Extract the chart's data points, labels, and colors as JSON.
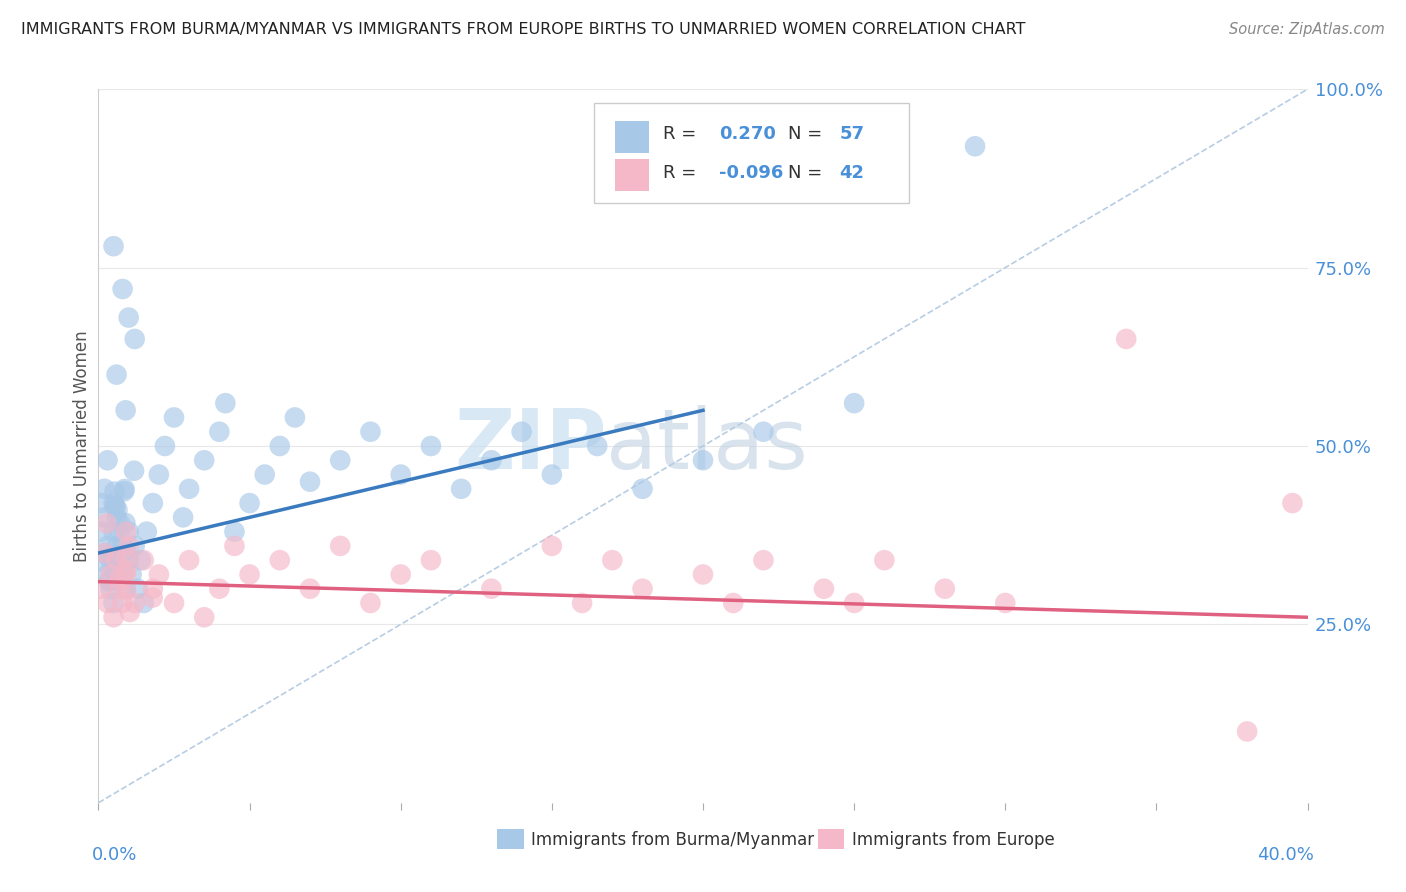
{
  "title": "IMMIGRANTS FROM BURMA/MYANMAR VS IMMIGRANTS FROM EUROPE BIRTHS TO UNMARRIED WOMEN CORRELATION CHART",
  "source": "Source: ZipAtlas.com",
  "ylabel": "Births to Unmarried Women",
  "legend1_r": "0.270",
  "legend1_n": "57",
  "legend2_r": "-0.096",
  "legend2_n": "42",
  "blue_color": "#a8c8e8",
  "pink_color": "#f5b8c8",
  "blue_line_color": "#3a7abf",
  "pink_line_color": "#e06080",
  "dash_color": "#b0c8e0",
  "xlim": [
    0.0,
    0.4
  ],
  "ylim": [
    0.0,
    1.0
  ],
  "blue_x": [
    0.001,
    0.001,
    0.002,
    0.002,
    0.002,
    0.003,
    0.003,
    0.003,
    0.004,
    0.004,
    0.005,
    0.005,
    0.005,
    0.006,
    0.006,
    0.007,
    0.007,
    0.008,
    0.008,
    0.009,
    0.01,
    0.01,
    0.011,
    0.012,
    0.013,
    0.014,
    0.015,
    0.016,
    0.018,
    0.02,
    0.022,
    0.025,
    0.028,
    0.03,
    0.035,
    0.04,
    0.042,
    0.045,
    0.05,
    0.055,
    0.06,
    0.065,
    0.07,
    0.08,
    0.09,
    0.1,
    0.11,
    0.12,
    0.13,
    0.14,
    0.15,
    0.165,
    0.18,
    0.2,
    0.22,
    0.25,
    0.29
  ],
  "blue_y": [
    0.38,
    0.42,
    0.35,
    0.4,
    0.44,
    0.32,
    0.36,
    0.48,
    0.3,
    0.34,
    0.28,
    0.38,
    0.42,
    0.36,
    0.4,
    0.34,
    0.38,
    0.32,
    0.36,
    0.3,
    0.34,
    0.38,
    0.32,
    0.36,
    0.3,
    0.34,
    0.28,
    0.38,
    0.42,
    0.46,
    0.5,
    0.54,
    0.4,
    0.44,
    0.48,
    0.52,
    0.56,
    0.38,
    0.42,
    0.46,
    0.5,
    0.54,
    0.45,
    0.48,
    0.52,
    0.46,
    0.5,
    0.44,
    0.48,
    0.52,
    0.46,
    0.5,
    0.44,
    0.48,
    0.52,
    0.56,
    0.92
  ],
  "pink_x": [
    0.001,
    0.002,
    0.003,
    0.004,
    0.005,
    0.006,
    0.007,
    0.008,
    0.009,
    0.01,
    0.012,
    0.015,
    0.018,
    0.02,
    0.025,
    0.03,
    0.035,
    0.04,
    0.045,
    0.05,
    0.06,
    0.07,
    0.08,
    0.09,
    0.1,
    0.11,
    0.13,
    0.15,
    0.16,
    0.17,
    0.18,
    0.2,
    0.21,
    0.22,
    0.24,
    0.25,
    0.26,
    0.28,
    0.3,
    0.34,
    0.38,
    0.395
  ],
  "pink_y": [
    0.3,
    0.35,
    0.28,
    0.32,
    0.26,
    0.34,
    0.3,
    0.28,
    0.32,
    0.36,
    0.28,
    0.34,
    0.3,
    0.32,
    0.28,
    0.34,
    0.26,
    0.3,
    0.36,
    0.32,
    0.34,
    0.3,
    0.36,
    0.28,
    0.32,
    0.34,
    0.3,
    0.36,
    0.28,
    0.34,
    0.3,
    0.32,
    0.28,
    0.34,
    0.3,
    0.28,
    0.34,
    0.3,
    0.28,
    0.65,
    0.1,
    0.42
  ],
  "blue_trend": [
    0.35,
    0.55
  ],
  "blue_trend_x": [
    0.0,
    0.2
  ],
  "pink_trend": [
    0.31,
    0.26
  ],
  "pink_trend_x": [
    0.0,
    0.4
  ],
  "watermark_zip": "ZIP",
  "watermark_atlas": "atlas",
  "background_color": "#ffffff",
  "grid_color": "#e8e8e8"
}
